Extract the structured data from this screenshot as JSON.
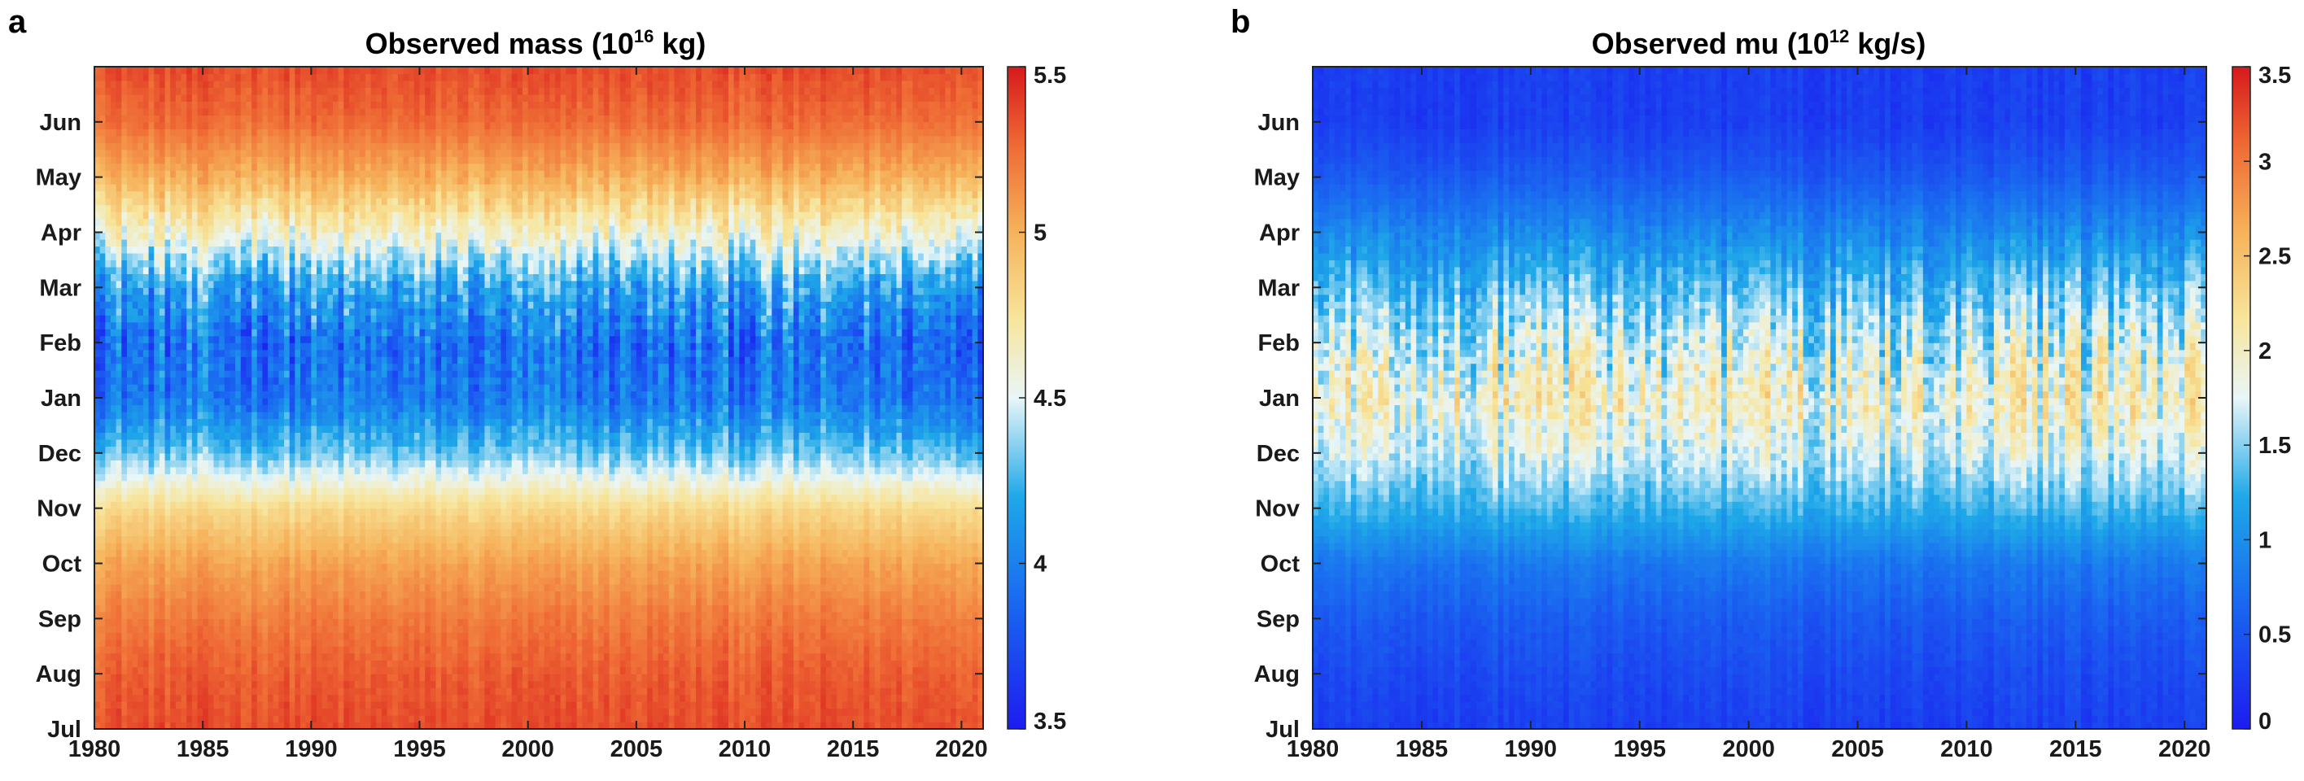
{
  "figure": {
    "colors": {
      "jet_low": "#1c1cf0",
      "jet_mid": "#e8f4f8",
      "jet_high": "#d7191c"
    }
  },
  "chart_data": [
    {
      "panel_label": "a",
      "type": "heatmap",
      "title_main": "Observed mass (10",
      "title_exp": "16",
      "title_unit": " kg)",
      "xlabel": "",
      "ylabel": "",
      "x_ticks": [
        "1980",
        "1985",
        "1990",
        "1995",
        "2000",
        "2005",
        "2010",
        "2015",
        "2020"
      ],
      "x_range": [
        1980,
        2021
      ],
      "y_ticks": [
        "Jul",
        "Aug",
        "Sep",
        "Oct",
        "Nov",
        "Dec",
        "Jan",
        "Feb",
        "Mar",
        "Apr",
        "May",
        "Jun"
      ],
      "y_range_months_from_jul1": [
        0,
        12
      ],
      "colorbar": {
        "min": 3.5,
        "max": 5.5,
        "ticks": [
          "3.5",
          "4",
          "4.5",
          "5",
          "5.5"
        ],
        "tick_values": [
          3.5,
          4,
          4.5,
          5,
          5.5
        ]
      },
      "season_profile": [
        {
          "month": "Jul",
          "value": 5.35
        },
        {
          "month": "Aug",
          "value": 5.3
        },
        {
          "month": "Sep",
          "value": 5.2
        },
        {
          "month": "Oct",
          "value": 5.05
        },
        {
          "month": "Nov",
          "value": 4.8
        },
        {
          "month": "Dec",
          "value": 4.3
        },
        {
          "month": "Jan",
          "value": 3.95
        },
        {
          "month": "Feb",
          "value": 3.9
        },
        {
          "month": "Mar",
          "value": 4.15
        },
        {
          "month": "Apr",
          "value": 4.6
        },
        {
          "month": "May",
          "value": 5.0
        },
        {
          "month": "Jun",
          "value": 5.25
        }
      ]
    },
    {
      "panel_label": "b",
      "type": "heatmap",
      "title_main": "Observed mu (10",
      "title_exp": "12",
      "title_unit": " kg/s)",
      "xlabel": "",
      "ylabel": "",
      "x_ticks": [
        "1980",
        "1985",
        "1990",
        "1995",
        "2000",
        "2005",
        "2010",
        "2015",
        "2020"
      ],
      "x_range": [
        1980,
        2021
      ],
      "y_ticks": [
        "Jul",
        "Aug",
        "Sep",
        "Oct",
        "Nov",
        "Dec",
        "Jan",
        "Feb",
        "Mar",
        "Apr",
        "May",
        "Jun"
      ],
      "y_range_months_from_jul1": [
        0,
        12
      ],
      "colorbar": {
        "min": 0,
        "max": 3.5,
        "ticks": [
          "0",
          "0.5",
          "1",
          "1.5",
          "2",
          "2.5",
          "3",
          "3.5"
        ],
        "tick_values": [
          0,
          0.5,
          1,
          1.5,
          2,
          2.5,
          3,
          3.5
        ]
      },
      "season_profile": [
        {
          "month": "Jul",
          "value": 0.3
        },
        {
          "month": "Aug",
          "value": 0.4
        },
        {
          "month": "Sep",
          "value": 0.55
        },
        {
          "month": "Oct",
          "value": 0.8
        },
        {
          "month": "Nov",
          "value": 1.3
        },
        {
          "month": "Dec",
          "value": 1.7
        },
        {
          "month": "Jan",
          "value": 1.95
        },
        {
          "month": "Feb",
          "value": 1.7
        },
        {
          "month": "Mar",
          "value": 1.35
        },
        {
          "month": "Apr",
          "value": 0.95
        },
        {
          "month": "May",
          "value": 0.55
        },
        {
          "month": "Jun",
          "value": 0.3
        }
      ]
    }
  ]
}
